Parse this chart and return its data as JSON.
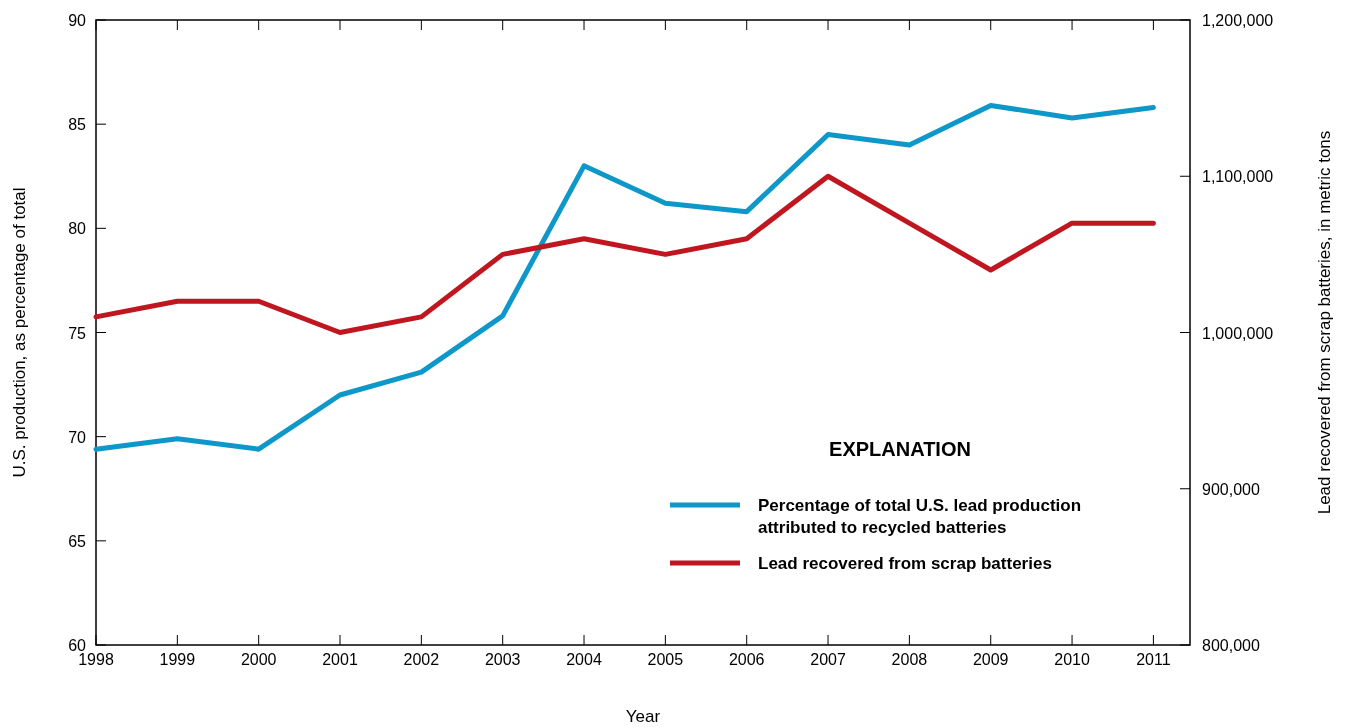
{
  "chart_data": {
    "type": "line",
    "xlabel": "Year",
    "ylabel": "U.S. production, as percentage of total",
    "y2label": "Lead recovered from scrap batteries, in metric tons",
    "legend_title": "EXPLANATION",
    "x": [
      1998,
      1999,
      2000,
      2001,
      2002,
      2003,
      2004,
      2005,
      2006,
      2007,
      2008,
      2009,
      2010,
      2011
    ],
    "xlim": [
      1998,
      2011.45
    ],
    "xticks": [
      1998,
      1999,
      2000,
      2001,
      2002,
      2003,
      2004,
      2005,
      2006,
      2007,
      2008,
      2009,
      2010,
      2011
    ],
    "ylim": [
      60,
      90
    ],
    "yticks": [
      60,
      65,
      70,
      75,
      80,
      85,
      90
    ],
    "y2lim": [
      800000,
      1200000
    ],
    "y2ticks": [
      {
        "value": 800000,
        "label": "800,000"
      },
      {
        "value": 900000,
        "label": "900,000"
      },
      {
        "value": 1000000,
        "label": "1,000,000"
      },
      {
        "value": 1100000,
        "label": "1,100,000"
      },
      {
        "value": 1200000,
        "label": "1,200,000"
      }
    ],
    "series": [
      {
        "name": "Percentage of total U.S. lead production attributed to recycled batteries",
        "color": "#0e97c9",
        "values": [
          69.4,
          69.9,
          69.4,
          72.0,
          73.1,
          75.8,
          83.0,
          81.2,
          80.8,
          84.5,
          84.0,
          85.9,
          85.3,
          85.8
        ]
      },
      {
        "name": "Lead recovered from scrap batteries",
        "color": "#c0161f",
        "axis": "y2",
        "values": [
          1010000,
          1020000,
          1020000,
          1000000,
          1010000,
          1050000,
          1060000,
          1050000,
          1060000,
          1100000,
          1070000,
          1040000,
          1070000,
          1070000
        ]
      }
    ],
    "grid": false,
    "legend": "bottom right",
    "marker": "none",
    "line_style": "solid"
  }
}
